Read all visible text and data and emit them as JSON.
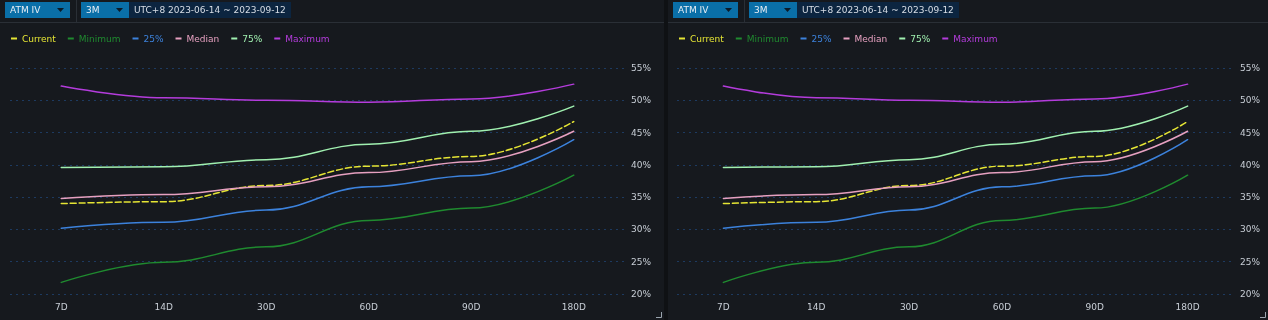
{
  "chart_data": [
    {
      "type": "line",
      "annotations": [
        "ATM IV",
        "3M",
        "UTC+8 2023-06-14 ~ 2023-09-12"
      ],
      "categories": [
        "7D",
        "14D",
        "30D",
        "60D",
        "90D",
        "180D"
      ],
      "series": [
        {
          "name": "Current",
          "color": "#e5e534",
          "line_style": "dashed",
          "values": [
            34.0,
            34.3,
            36.8,
            39.8,
            41.3,
            46.7
          ]
        },
        {
          "name": "Minimum",
          "color": "#1f8a2f",
          "values": [
            21.8,
            24.9,
            27.3,
            31.4,
            33.3,
            38.4
          ]
        },
        {
          "name": "25%",
          "color": "#3c82dc",
          "values": [
            30.2,
            31.1,
            33.0,
            36.6,
            38.3,
            43.9
          ]
        },
        {
          "name": "Median",
          "color": "#e6a0c0",
          "values": [
            34.8,
            35.4,
            36.6,
            38.8,
            40.5,
            45.2
          ]
        },
        {
          "name": "75%",
          "color": "#a0f0b0",
          "values": [
            39.6,
            39.7,
            40.8,
            43.2,
            45.2,
            49.1
          ]
        },
        {
          "name": "Maximum",
          "color": "#b43cdc",
          "values": [
            52.2,
            50.4,
            50.0,
            49.7,
            50.2,
            52.5
          ]
        }
      ],
      "ylim": [
        20,
        55
      ],
      "yticks": [
        {
          "value": 20,
          "label": "20%"
        },
        {
          "value": 25,
          "label": "25%"
        },
        {
          "value": 30,
          "label": "30%"
        },
        {
          "value": 35,
          "label": "35%"
        },
        {
          "value": 40,
          "label": "40%"
        },
        {
          "value": 45,
          "label": "45%"
        },
        {
          "value": 50,
          "label": "50%"
        },
        {
          "value": 55,
          "label": "55%"
        }
      ],
      "grid": "y",
      "legend": "top left",
      "marker": "none",
      "line_style": "solid"
    },
    {
      "type": "line",
      "annotations": [
        "ATM IV",
        "3M",
        "UTC+8 2023-06-14 ~ 2023-09-12"
      ],
      "categories": [
        "7D",
        "14D",
        "30D",
        "60D",
        "90D",
        "180D"
      ],
      "series": [
        {
          "name": "Current",
          "color": "#e5e534",
          "line_style": "dashed",
          "values": [
            34.0,
            34.3,
            36.8,
            39.8,
            41.3,
            46.7
          ]
        },
        {
          "name": "Minimum",
          "color": "#1f8a2f",
          "values": [
            21.8,
            24.9,
            27.3,
            31.4,
            33.3,
            38.4
          ]
        },
        {
          "name": "25%",
          "color": "#3c82dc",
          "values": [
            30.2,
            31.1,
            33.0,
            36.6,
            38.3,
            43.9
          ]
        },
        {
          "name": "Median",
          "color": "#e6a0c0",
          "values": [
            34.8,
            35.4,
            36.6,
            38.8,
            40.5,
            45.2
          ]
        },
        {
          "name": "75%",
          "color": "#a0f0b0",
          "values": [
            39.6,
            39.7,
            40.8,
            43.2,
            45.2,
            49.1
          ]
        },
        {
          "name": "Maximum",
          "color": "#b43cdc",
          "values": [
            52.2,
            50.4,
            50.0,
            49.7,
            50.2,
            52.5
          ]
        }
      ],
      "ylim": [
        20,
        55
      ],
      "yticks": [
        {
          "value": 20,
          "label": "20%"
        },
        {
          "value": 25,
          "label": "25%"
        },
        {
          "value": 30,
          "label": "30%"
        },
        {
          "value": 35,
          "label": "35%"
        },
        {
          "value": 40,
          "label": "40%"
        },
        {
          "value": 45,
          "label": "45%"
        },
        {
          "value": 50,
          "label": "50%"
        },
        {
          "value": 55,
          "label": "55%"
        }
      ],
      "grid": "y",
      "legend": "top left",
      "marker": "none",
      "line_style": "solid"
    }
  ]
}
